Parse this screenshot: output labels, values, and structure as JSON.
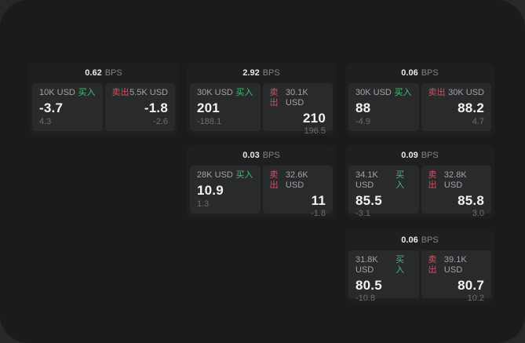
{
  "labels": {
    "bps_unit": "BPS",
    "buy": "买入",
    "sell": "卖出"
  },
  "colors": {
    "outer_bg": "#28282a",
    "window_bg": "#1b1b1c",
    "card_bg": "#1f1f20",
    "panel_bg": "#292a2b",
    "buy_green": "#43bd7a",
    "sell_red": "#cd5264",
    "value_white": "#f2f2f2",
    "muted_gray": "#6e6e71"
  },
  "cards": [
    {
      "bps": "0.62",
      "buy": {
        "size": "10K USD",
        "value": "-3.7",
        "sub": "4.3"
      },
      "sell": {
        "size": "5.5K USD",
        "value": "-1.8",
        "sub": "-2.6"
      }
    },
    {
      "bps": "2.92",
      "buy": {
        "size": "30K USD",
        "value": "201",
        "sub": "-188.1"
      },
      "sell": {
        "size": "30.1K USD",
        "value": "210",
        "sub": "196.5"
      }
    },
    {
      "bps": "0.06",
      "buy": {
        "size": "30K USD",
        "value": "88",
        "sub": "-4.9"
      },
      "sell": {
        "size": "30K USD",
        "value": "88.2",
        "sub": "4.7"
      }
    },
    {
      "bps": "0.03",
      "buy": {
        "size": "28K USD",
        "value": "10.9",
        "sub": "1.3"
      },
      "sell": {
        "size": "32.6K USD",
        "value": "11",
        "sub": "-1.8"
      }
    },
    {
      "bps": "0.09",
      "buy": {
        "size": "34.1K USD",
        "value": "85.5",
        "sub": "-3.1"
      },
      "sell": {
        "size": "32.8K USD",
        "value": "85.8",
        "sub": "3.0"
      }
    },
    {
      "bps": "0.06",
      "buy": {
        "size": "31.8K USD",
        "value": "80.5",
        "sub": "-10.8"
      },
      "sell": {
        "size": "39.1K USD",
        "value": "80.7",
        "sub": "10.2"
      }
    }
  ]
}
